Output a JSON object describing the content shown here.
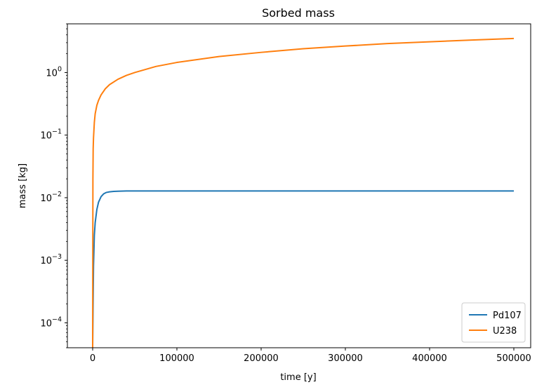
{
  "chart_data": {
    "type": "line",
    "title": "Sorbed mass",
    "xlabel": "time [y]",
    "ylabel": "mass [kg]",
    "xlim": [
      -30000,
      520000
    ],
    "ylim": [
      4e-05,
      6
    ],
    "y_scale": "log",
    "grid": false,
    "legend_position": "lower-right",
    "x_ticks": [
      {
        "value": 0,
        "label": "0"
      },
      {
        "value": 100000,
        "label": "100000"
      },
      {
        "value": 200000,
        "label": "200000"
      },
      {
        "value": 300000,
        "label": "300000"
      },
      {
        "value": 400000,
        "label": "400000"
      },
      {
        "value": 500000,
        "label": "500000"
      }
    ],
    "y_ticks": [
      {
        "value": 0.0001,
        "base": "10",
        "exp": "−4"
      },
      {
        "value": 0.001,
        "base": "10",
        "exp": "−3"
      },
      {
        "value": 0.01,
        "base": "10",
        "exp": "−2"
      },
      {
        "value": 0.1,
        "base": "10",
        "exp": "−1"
      },
      {
        "value": 1,
        "base": "10",
        "exp": "0"
      }
    ],
    "series": [
      {
        "name": "Pd107",
        "color": "#1f77b4",
        "x": [
          0,
          500,
          1000,
          2000,
          3000,
          5000,
          7000,
          10000,
          13000,
          16000,
          20000,
          25000,
          30000,
          40000,
          50000,
          100000,
          200000,
          300000,
          400000,
          500000
        ],
        "y": [
          4e-05,
          0.0002,
          0.0008,
          0.0025,
          0.004,
          0.0065,
          0.0085,
          0.0104,
          0.0115,
          0.0121,
          0.0124,
          0.0126,
          0.0127,
          0.0128,
          0.0128,
          0.0128,
          0.0128,
          0.0128,
          0.0128,
          0.0128
        ]
      },
      {
        "name": "U238",
        "color": "#ff7f0e",
        "x": [
          0,
          300,
          600,
          1000,
          2000,
          3000,
          5000,
          7000,
          10000,
          15000,
          20000,
          30000,
          40000,
          50000,
          75000,
          100000,
          150000,
          200000,
          250000,
          300000,
          350000,
          400000,
          450000,
          500000
        ],
        "y": [
          4e-05,
          0.02,
          0.06,
          0.09,
          0.16,
          0.22,
          0.3,
          0.36,
          0.44,
          0.55,
          0.64,
          0.78,
          0.9,
          1.0,
          1.25,
          1.45,
          1.8,
          2.1,
          2.4,
          2.65,
          2.9,
          3.1,
          3.3,
          3.5
        ]
      }
    ]
  }
}
